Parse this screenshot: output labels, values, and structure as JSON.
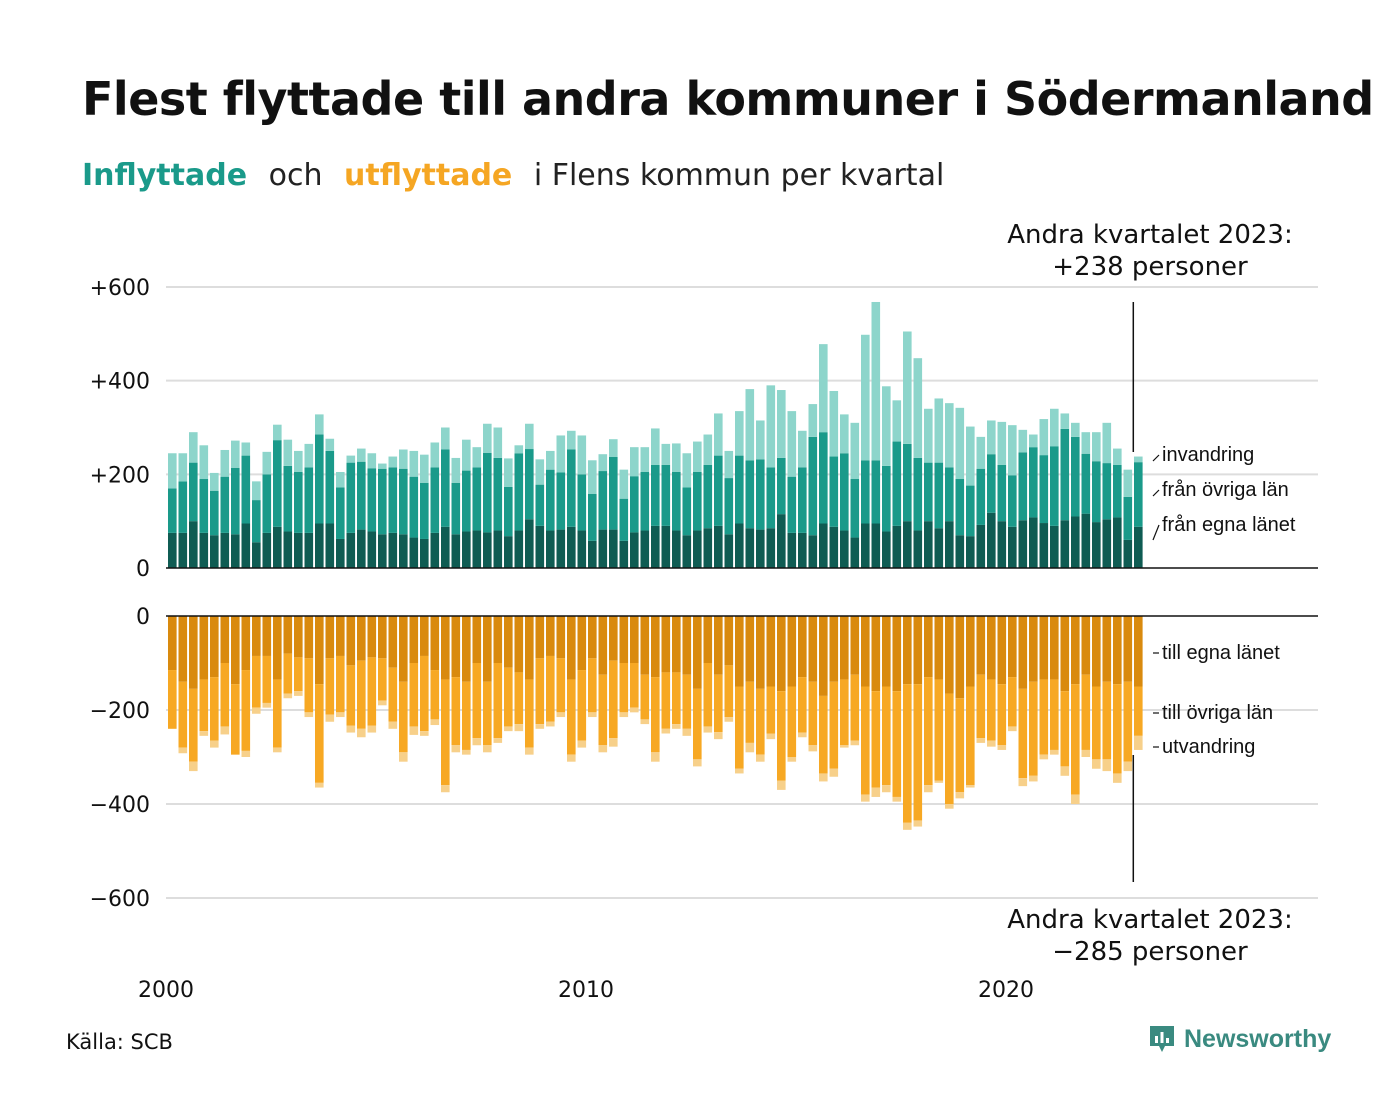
{
  "title": "Flest flyttade till andra kommuner i Södermanland",
  "subtitle": {
    "in_word": "Inflyttade",
    "and": "och",
    "out_word": "utflyttade",
    "rest": "i Flens kommun per kvartal"
  },
  "annotations": {
    "top_line1": "Andra kvartalet 2023:",
    "top_line2": "+238 personer",
    "bottom_line1": "Andra kvartalet 2023:",
    "bottom_line2": "−285 personer"
  },
  "source": "Källa: SCB",
  "brand": "Newsworthy",
  "colors": {
    "in_own": "#0f5c53",
    "in_other": "#1a9a8a",
    "in_immig": "#8dd5cb",
    "out_own": "#d98a0e",
    "out_other": "#f7a823",
    "out_emig": "#f7d08a",
    "grid": "#dddddd",
    "title": "#111111"
  },
  "chart_data": {
    "type": "bar",
    "stacked": true,
    "x_ticks": [
      "2000",
      "2010",
      "2020"
    ],
    "y_ticks_top": [
      "+600",
      "+400",
      "+200",
      "0"
    ],
    "y_ticks_bottom": [
      "0",
      "−200",
      "−400",
      "−600"
    ],
    "ylim_top": [
      0,
      600
    ],
    "ylim_bottom": [
      -600,
      0
    ],
    "series_labels_in": [
      "invandring",
      "från övriga län",
      "från egna länet"
    ],
    "series_labels_out": [
      "till egna länet",
      "till övriga län",
      "utvandring"
    ],
    "quarters_start": "2000 Q1",
    "quarters_end": "2023 Q2",
    "inflyttade_total": [
      245,
      245,
      290,
      262,
      203,
      252,
      272,
      268,
      185,
      248,
      306,
      274,
      250,
      265,
      328,
      276,
      205,
      240,
      255,
      245,
      223,
      238,
      253,
      250,
      242,
      268,
      300,
      235,
      274,
      258,
      308,
      300,
      234,
      262,
      308,
      232,
      250,
      283,
      293,
      283,
      230,
      243,
      275,
      210,
      258,
      258,
      298,
      265,
      266,
      245,
      270,
      285,
      330,
      250,
      335,
      382,
      315,
      390,
      380,
      335,
      293,
      350,
      478,
      378,
      328,
      310,
      498,
      568,
      388,
      358,
      505,
      448,
      340,
      362,
      352,
      342,
      302,
      280,
      315,
      312,
      305,
      295,
      285,
      318,
      340,
      330,
      310,
      290,
      290,
      310,
      255,
      210,
      238
    ],
    "inflyttade_egna": [
      75,
      75,
      100,
      75,
      70,
      75,
      72,
      95,
      55,
      75,
      88,
      78,
      75,
      75,
      95,
      95,
      62,
      75,
      82,
      78,
      72,
      75,
      72,
      65,
      62,
      75,
      88,
      72,
      78,
      80,
      76,
      80,
      68,
      80,
      104,
      90,
      80,
      82,
      88,
      80,
      58,
      82,
      82,
      58,
      76,
      80,
      90,
      90,
      80,
      70,
      80,
      85,
      90,
      72,
      95,
      85,
      82,
      85,
      115,
      75,
      75,
      70,
      95,
      88,
      80,
      65,
      95,
      95,
      78,
      90,
      100,
      80,
      100,
      85,
      100,
      70,
      68,
      92,
      118,
      100,
      88,
      102,
      108,
      96,
      90,
      102,
      110,
      116,
      98,
      104,
      108,
      60,
      88
    ],
    "inflyttade_ovriga": [
      95,
      110,
      125,
      115,
      95,
      120,
      142,
      145,
      90,
      125,
      185,
      140,
      130,
      140,
      190,
      155,
      110,
      150,
      145,
      135,
      140,
      140,
      140,
      130,
      120,
      140,
      165,
      110,
      130,
      135,
      170,
      155,
      105,
      165,
      150,
      88,
      130,
      122,
      165,
      120,
      100,
      125,
      155,
      90,
      120,
      125,
      130,
      130,
      125,
      102,
      125,
      135,
      150,
      120,
      145,
      145,
      150,
      130,
      120,
      120,
      140,
      210,
      195,
      150,
      165,
      125,
      135,
      135,
      140,
      180,
      165,
      155,
      125,
      140,
      115,
      120,
      108,
      120,
      125,
      120,
      110,
      145,
      150,
      145,
      170,
      195,
      170,
      128,
      130,
      120,
      112,
      92,
      138
    ],
    "utflyttade_total": [
      -240,
      -292,
      -330,
      -255,
      -280,
      -252,
      -295,
      -300,
      -208,
      -195,
      -290,
      -175,
      -170,
      -215,
      -365,
      -225,
      -215,
      -248,
      -258,
      -248,
      -190,
      -240,
      -310,
      -253,
      -255,
      -232,
      -375,
      -290,
      -295,
      -275,
      -290,
      -270,
      -245,
      -245,
      -295,
      -240,
      -235,
      -215,
      -310,
      -280,
      -215,
      -290,
      -278,
      -215,
      -205,
      -230,
      -310,
      -250,
      -240,
      -255,
      -320,
      -248,
      -262,
      -225,
      -335,
      -290,
      -310,
      -262,
      -370,
      -310,
      -258,
      -288,
      -352,
      -342,
      -280,
      -275,
      -395,
      -385,
      -375,
      -395,
      -455,
      -448,
      -375,
      -355,
      -410,
      -388,
      -365,
      -270,
      -278,
      -285,
      -245,
      -362,
      -352,
      -305,
      -295,
      -340,
      -400,
      -300,
      -325,
      -330,
      -355,
      -330,
      -285
    ],
    "utflyttade_egna": [
      -115,
      -140,
      -155,
      -135,
      -130,
      -100,
      -145,
      -115,
      -85,
      -85,
      -135,
      -80,
      -88,
      -90,
      -145,
      -90,
      -85,
      -105,
      -95,
      -88,
      -90,
      -110,
      -140,
      -100,
      -85,
      -115,
      -135,
      -130,
      -140,
      -100,
      -140,
      -100,
      -110,
      -120,
      -135,
      -90,
      -85,
      -90,
      -135,
      -115,
      -90,
      -125,
      -95,
      -100,
      -100,
      -125,
      -130,
      -120,
      -120,
      -125,
      -155,
      -100,
      -125,
      -105,
      -150,
      -140,
      -155,
      -150,
      -160,
      -150,
      -130,
      -140,
      -170,
      -140,
      -135,
      -125,
      -150,
      -160,
      -150,
      -160,
      -145,
      -145,
      -130,
      -135,
      -165,
      -175,
      -150,
      -125,
      -135,
      -145,
      -130,
      -155,
      -140,
      -135,
      -135,
      -160,
      -145,
      -125,
      -150,
      -140,
      -145,
      -140,
      -150
    ],
    "utflyttade_ovriga": [
      -125,
      -140,
      -155,
      -110,
      -135,
      -135,
      -150,
      -172,
      -110,
      -100,
      -145,
      -85,
      -72,
      -115,
      -210,
      -120,
      -120,
      -128,
      -145,
      -145,
      -90,
      -115,
      -150,
      -135,
      -160,
      -105,
      -225,
      -145,
      -145,
      -160,
      -135,
      -160,
      -125,
      -110,
      -145,
      -140,
      -140,
      -115,
      -160,
      -150,
      -115,
      -150,
      -165,
      -105,
      -95,
      -95,
      -160,
      -120,
      -110,
      -115,
      -150,
      -135,
      -122,
      -110,
      -175,
      -130,
      -140,
      -100,
      -190,
      -150,
      -118,
      -135,
      -165,
      -185,
      -140,
      -140,
      -230,
      -205,
      -210,
      -225,
      -295,
      -290,
      -230,
      -215,
      -235,
      -200,
      -210,
      -135,
      -130,
      -130,
      -105,
      -190,
      -200,
      -160,
      -150,
      -160,
      -235,
      -160,
      -155,
      -165,
      -190,
      -170,
      -105
    ]
  }
}
